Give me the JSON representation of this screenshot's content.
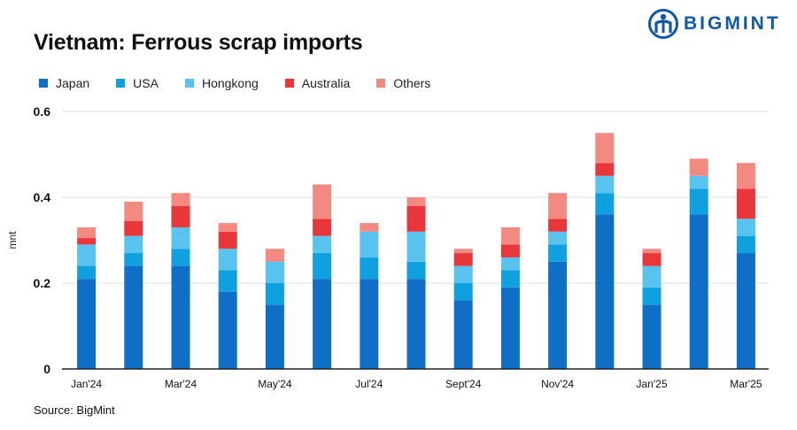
{
  "header": {
    "title": "Vietnam: Ferrous scrap imports",
    "brand": "BIGMINT"
  },
  "source": "Source: BigMint",
  "colors": {
    "Japan": "#0f6fc6",
    "USA": "#0fa0e0",
    "Hongkong": "#59c3f0",
    "Australia": "#e8363a",
    "Others": "#f38a82",
    "brand": "#0f58a8"
  },
  "chart_data": {
    "type": "bar",
    "stacked": true,
    "title": "Vietnam: Ferrous scrap imports",
    "xlabel": "",
    "ylabel": "mnt",
    "ylim": [
      0,
      0.6
    ],
    "yticks": [
      0,
      0.2,
      0.4,
      0.6
    ],
    "ytick_labels": [
      "0",
      "0.2",
      "0.4",
      "0.6"
    ],
    "grid": true,
    "legend_position": "top-left",
    "categories": [
      "Jan'24",
      "Feb'24",
      "Mar'24",
      "Apr'24",
      "May'24",
      "Jun'24",
      "Jul'24",
      "Aug'24",
      "Sept'24",
      "Oct'24",
      "Nov'24",
      "Dec'24",
      "Jan'25",
      "Feb'25",
      "Mar'25"
    ],
    "xtick_labels": [
      "Jan'24",
      "",
      "Mar'24",
      "",
      "May'24",
      "",
      "Jul'24",
      "",
      "Sept'24",
      "",
      "Nov'24",
      "",
      "Jan'25",
      "",
      "Mar'25"
    ],
    "series": [
      {
        "name": "Japan",
        "values": [
          0.21,
          0.24,
          0.24,
          0.18,
          0.15,
          0.21,
          0.21,
          0.21,
          0.16,
          0.19,
          0.25,
          0.36,
          0.15,
          0.36,
          0.27
        ]
      },
      {
        "name": "USA",
        "values": [
          0.03,
          0.03,
          0.04,
          0.05,
          0.05,
          0.06,
          0.05,
          0.04,
          0.04,
          0.04,
          0.04,
          0.05,
          0.04,
          0.06,
          0.04
        ]
      },
      {
        "name": "Hongkong",
        "values": [
          0.05,
          0.04,
          0.05,
          0.05,
          0.05,
          0.04,
          0.06,
          0.07,
          0.04,
          0.03,
          0.03,
          0.04,
          0.05,
          0.03,
          0.04
        ]
      },
      {
        "name": "Australia",
        "values": [
          0.015,
          0.035,
          0.05,
          0.04,
          0.0,
          0.04,
          0.0,
          0.06,
          0.03,
          0.03,
          0.03,
          0.03,
          0.03,
          0.0,
          0.07
        ]
      },
      {
        "name": "Others",
        "values": [
          0.025,
          0.045,
          0.03,
          0.02,
          0.03,
          0.08,
          0.02,
          0.02,
          0.01,
          0.04,
          0.06,
          0.07,
          0.01,
          0.04,
          0.06
        ]
      }
    ]
  }
}
